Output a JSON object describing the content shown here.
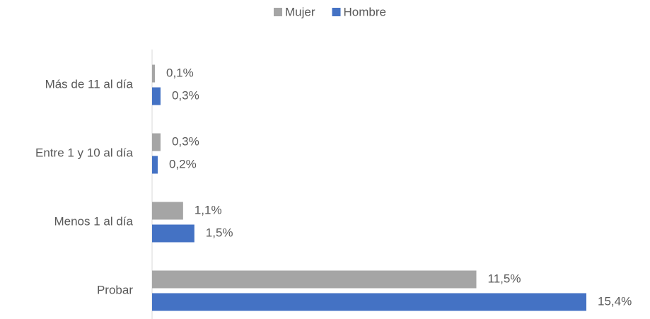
{
  "chart_data": {
    "type": "hbar",
    "categories": [
      "Más de 11 al día",
      "Entre 1 y 10 al día",
      "Menos 1 al día",
      "Probar"
    ],
    "series": [
      {
        "name": "Mujer",
        "color": "#a5a5a5",
        "values": [
          0.1,
          0.3,
          1.1,
          11.5
        ],
        "value_labels": [
          "0,1%",
          "0,3%",
          "1,1%",
          "11,5%"
        ]
      },
      {
        "name": "Hombre",
        "color": "#4472c4",
        "values": [
          0.3,
          0.2,
          1.5,
          15.4
        ],
        "value_labels": [
          "0,3%",
          "0,2%",
          "1,5%",
          "15,4%"
        ]
      }
    ],
    "legend": "top"
  }
}
